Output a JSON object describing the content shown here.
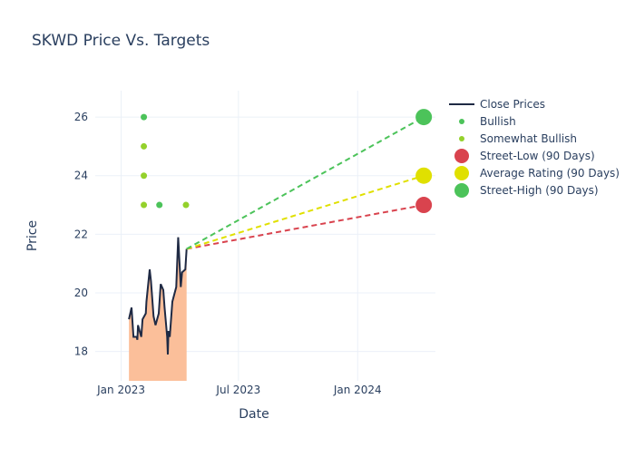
{
  "chart_data": {
    "type": "line",
    "title": "SKWD Price Vs. Targets",
    "xlabel": "Date",
    "ylabel": "Price",
    "xlim": [
      "2022-11-22",
      "2024-04-30"
    ],
    "ylim": [
      17,
      26.9
    ],
    "x_ticks": [
      {
        "date": "2023-01-01",
        "label": "Jan 2023"
      },
      {
        "date": "2023-07-01",
        "label": "Jul 2023"
      },
      {
        "date": "2024-01-01",
        "label": "Jan 2024"
      }
    ],
    "y_ticks": [
      18,
      20,
      22,
      24,
      26
    ],
    "grid": true,
    "legend_position": "top-right",
    "close_prices": {
      "name": "Close Prices",
      "color": "#1f2a44",
      "fill_color": "#fbbf9a",
      "points": [
        [
          "2023-01-13",
          19.1
        ],
        [
          "2023-01-17",
          19.5
        ],
        [
          "2023-01-20",
          18.5
        ],
        [
          "2023-01-25",
          18.5
        ],
        [
          "2023-01-26",
          18.4
        ],
        [
          "2023-01-27",
          18.9
        ],
        [
          "2023-02-01",
          18.5
        ],
        [
          "2023-02-03",
          19.1
        ],
        [
          "2023-02-08",
          19.3
        ],
        [
          "2023-02-09",
          19.7
        ],
        [
          "2023-02-14",
          20.8
        ],
        [
          "2023-02-16",
          20.4
        ],
        [
          "2023-02-20",
          19.2
        ],
        [
          "2023-02-23",
          18.9
        ],
        [
          "2023-02-28",
          19.3
        ],
        [
          "2023-03-03",
          20.3
        ],
        [
          "2023-03-07",
          20.1
        ],
        [
          "2023-03-09",
          19.5
        ],
        [
          "2023-03-13",
          18.5
        ],
        [
          "2023-03-14",
          17.9
        ],
        [
          "2023-03-15",
          18.7
        ],
        [
          "2023-03-17",
          18.5
        ],
        [
          "2023-03-21",
          19.7
        ],
        [
          "2023-03-27",
          20.2
        ],
        [
          "2023-03-30",
          21.9
        ],
        [
          "2023-04-03",
          20.2
        ],
        [
          "2023-04-05",
          20.7
        ],
        [
          "2023-04-10",
          20.8
        ],
        [
          "2023-04-12",
          21.5
        ]
      ]
    },
    "ratings": [
      {
        "name": "Bullish",
        "color": "#4cc35a",
        "points": [
          [
            "2023-02-05",
            26
          ],
          [
            "2023-03-01",
            23
          ]
        ]
      },
      {
        "name": "Somewhat Bullish",
        "color": "#94d12c",
        "points": [
          [
            "2023-02-05",
            25
          ],
          [
            "2023-02-05",
            24
          ],
          [
            "2023-02-05",
            23
          ],
          [
            "2023-04-11",
            23
          ]
        ]
      }
    ],
    "targets": [
      {
        "name": "Street-Low (90 Days)",
        "color": "#d9434e",
        "date": "2024-04-12",
        "value": 23
      },
      {
        "name": "Average Rating (90 Days)",
        "color": "#e0e000",
        "date": "2024-04-12",
        "value": 24
      },
      {
        "name": "Street-High (90 Days)",
        "color": "#4cc35a",
        "date": "2024-04-12",
        "value": 26
      }
    ]
  }
}
